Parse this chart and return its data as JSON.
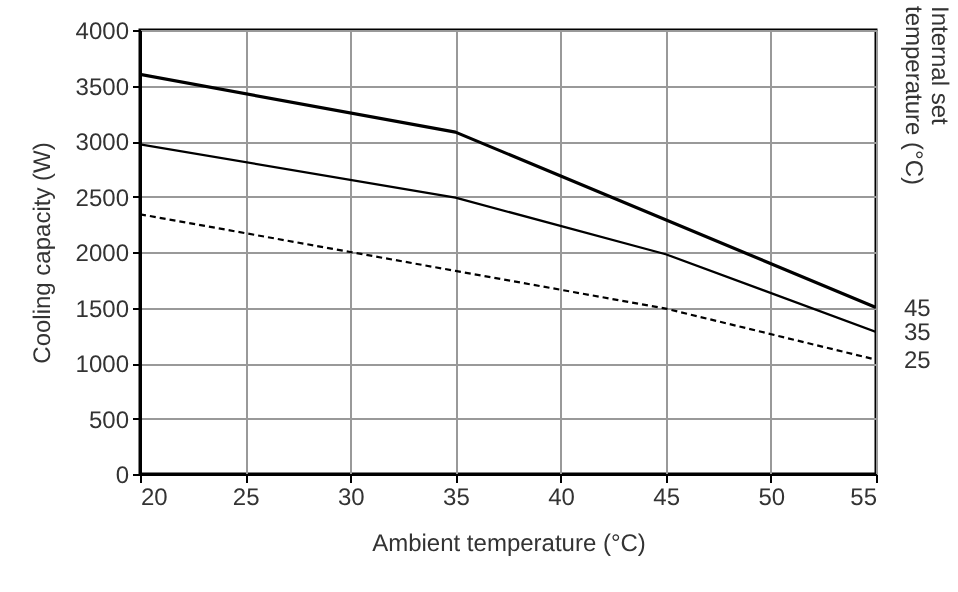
{
  "chart_data": {
    "type": "line",
    "xlabel": "Ambient temperature (°C)",
    "ylabel": "Cooling capacity (W)",
    "legend_title": "Internal set temperature (°C)",
    "xlim": [
      20,
      55
    ],
    "xticks": [
      20,
      25,
      30,
      35,
      40,
      45,
      50,
      55
    ],
    "ylim": [
      0,
      4000
    ],
    "yticks": [
      0,
      500,
      1000,
      1500,
      2000,
      2500,
      3000,
      3500,
      4000
    ],
    "grid": true,
    "series": [
      {
        "name": "45",
        "color": "#000000",
        "line_style": "solid",
        "x": [
          20,
          35,
          55
        ],
        "values": [
          3600,
          3080,
          1500
        ]
      },
      {
        "name": "35",
        "color": "#000000",
        "line_style": "solid",
        "x": [
          20,
          35,
          45,
          55
        ],
        "values": [
          2970,
          2490,
          1980,
          1280
        ]
      },
      {
        "name": "25",
        "color": "#000000",
        "line_style": "dashed",
        "x": [
          20,
          30,
          35,
          45,
          55
        ],
        "values": [
          2340,
          2000,
          1830,
          1490,
          1030
        ]
      }
    ]
  }
}
